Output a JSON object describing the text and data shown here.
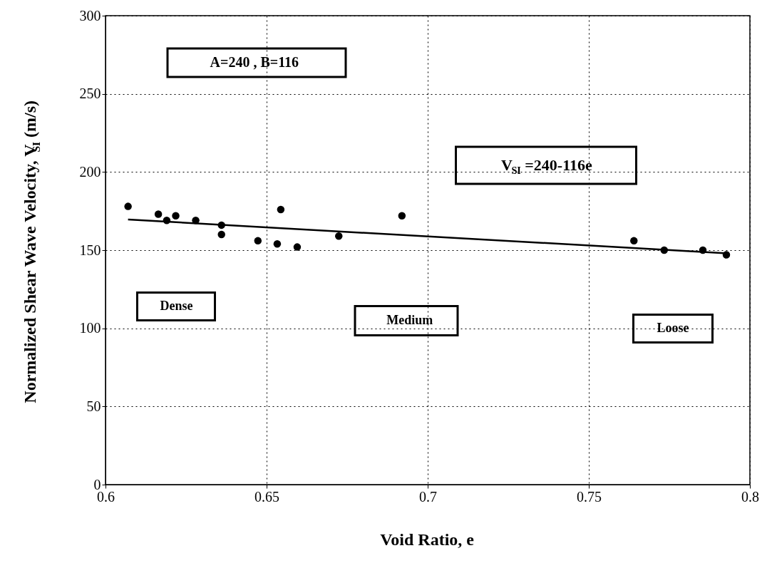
{
  "chart_data": {
    "type": "scatter",
    "xlabel": "Void Ratio,  e",
    "ylabel": "Normalized Shear Wave Velocity, V$_{SI}$ (m/s)",
    "series": [
      {
        "type": "scatter",
        "color": "#000000",
        "marker": "circle",
        "x": [
          0.607,
          0.6164,
          0.619,
          0.6218,
          0.628,
          0.636,
          0.636,
          0.6473,
          0.6533,
          0.6544,
          0.6595,
          0.6724,
          0.692,
          0.764,
          0.7734,
          0.7854,
          0.7927
        ],
        "values": [
          178,
          173,
          169,
          172,
          169,
          166,
          160,
          156,
          154,
          176,
          152,
          159,
          172,
          156,
          150,
          150,
          147
        ]
      },
      {
        "type": "line",
        "color": "#000000",
        "line_style": "solid",
        "x": [
          0.607,
          0.792
        ],
        "values": [
          169.6,
          148.1
        ]
      }
    ],
    "xlim": [
      0.6,
      0.8
    ],
    "xticks": [
      0.6,
      0.65,
      0.7,
      0.75,
      0.8
    ],
    "ylim": [
      0,
      300
    ],
    "yticks": [
      0,
      50,
      100,
      150,
      200,
      250,
      300
    ],
    "grid": true,
    "annotations": [
      "A=240  ,  B=116",
      "V$_{SI}$=240-116e",
      "Dense",
      "Medium",
      "Loose"
    ]
  }
}
